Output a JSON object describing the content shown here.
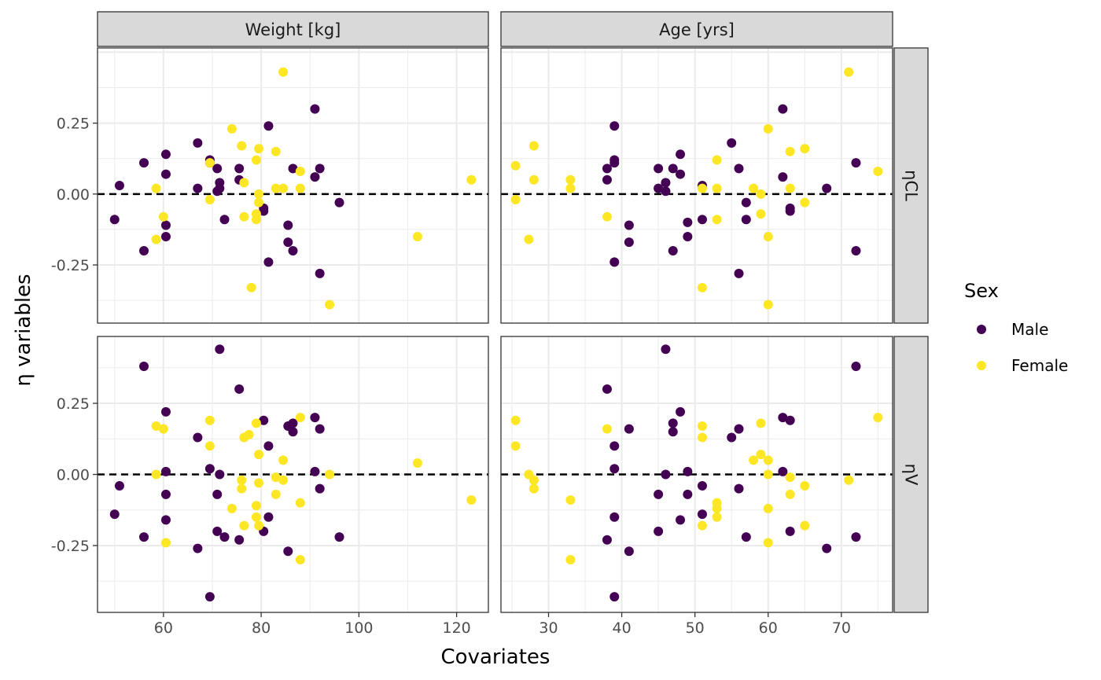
{
  "chart_data": {
    "type": "scatter",
    "layout": "facet_grid",
    "title": "",
    "xlabel": "Covariates",
    "ylabel": "η variables",
    "columns": [
      {
        "label": "Weight [kg]",
        "xlim": [
          46.5,
          126.5
        ],
        "ticks": [
          60,
          80,
          100,
          120
        ],
        "tick_labels": [
          "60",
          "80",
          "100",
          "120"
        ]
      },
      {
        "label": "Age [yrs]",
        "xlim": [
          23.5,
          77.0
        ],
        "ticks": [
          30,
          40,
          50,
          60,
          70
        ],
        "tick_labels": [
          "30",
          "40",
          "50",
          "60",
          "70"
        ]
      }
    ],
    "rows": [
      {
        "label": "ηCL",
        "ylim": [
          -0.455,
          0.515
        ]
      },
      {
        "label": "ηV",
        "ylim": [
          -0.485,
          0.485
        ]
      }
    ],
    "yticks": [
      -0.25,
      0,
      0.25
    ],
    "ytick_labels": [
      "-0.25",
      "0.00",
      "0.25"
    ],
    "reference_line": {
      "y": 0,
      "style": "dashed"
    },
    "grid": true,
    "legend": {
      "title": "Sex",
      "position": "right",
      "entries": [
        {
          "name": "Male",
          "color": "#440154"
        },
        {
          "name": "Female",
          "color": "#FDE725"
        }
      ]
    },
    "series": [
      {
        "name": "Male",
        "color": "#440154",
        "panels": [
          {
            "row": 0,
            "col": 0,
            "points": [
              [
                50,
                -0.09
              ],
              [
                51,
                0.03
              ],
              [
                56,
                0.11
              ],
              [
                56,
                -0.2
              ],
              [
                60.5,
                0.14
              ],
              [
                60.5,
                0.07
              ],
              [
                60.5,
                -0.11
              ],
              [
                60.5,
                -0.15
              ],
              [
                67,
                0.18
              ],
              [
                67,
                0.02
              ],
              [
                69.5,
                0.12
              ],
              [
                69.5,
                0.11
              ],
              [
                71,
                0.09
              ],
              [
                71,
                0.01
              ],
              [
                71.5,
                0.04
              ],
              [
                71.5,
                0.02
              ],
              [
                72.5,
                -0.09
              ],
              [
                75.5,
                0.09
              ],
              [
                75.5,
                0.05
              ],
              [
                80.5,
                -0.05
              ],
              [
                80.5,
                -0.06
              ],
              [
                81.5,
                0.24
              ],
              [
                81.5,
                -0.24
              ],
              [
                85.5,
                -0.11
              ],
              [
                85.5,
                -0.17
              ],
              [
                86.5,
                0.09
              ],
              [
                86.5,
                -0.2
              ],
              [
                91,
                0.3
              ],
              [
                91,
                0.06
              ],
              [
                92,
                0.09
              ],
              [
                92,
                -0.28
              ],
              [
                96,
                -0.03
              ]
            ]
          },
          {
            "row": 0,
            "col": 1,
            "points": [
              [
                38,
                0.09
              ],
              [
                38,
                0.05
              ],
              [
                39,
                0.24
              ],
              [
                39,
                0.12
              ],
              [
                39,
                0.11
              ],
              [
                39,
                -0.24
              ],
              [
                41,
                -0.11
              ],
              [
                41,
                -0.17
              ],
              [
                45,
                0.09
              ],
              [
                45,
                0.02
              ],
              [
                46,
                0.04
              ],
              [
                46,
                0.01
              ],
              [
                47,
                0.09
              ],
              [
                47,
                -0.2
              ],
              [
                48,
                0.14
              ],
              [
                48,
                0.07
              ],
              [
                49,
                -0.1
              ],
              [
                49,
                -0.15
              ],
              [
                51,
                0.03
              ],
              [
                51,
                -0.09
              ],
              [
                55,
                0.18
              ],
              [
                56,
                0.09
              ],
              [
                56,
                -0.28
              ],
              [
                57,
                -0.03
              ],
              [
                57,
                -0.09
              ],
              [
                62,
                0.3
              ],
              [
                62,
                0.06
              ],
              [
                63,
                -0.05
              ],
              [
                63,
                -0.06
              ],
              [
                68,
                0.02
              ],
              [
                72,
                0.11
              ],
              [
                72,
                -0.2
              ]
            ]
          },
          {
            "row": 1,
            "col": 0,
            "points": [
              [
                50,
                -0.14
              ],
              [
                51,
                -0.04
              ],
              [
                56,
                0.38
              ],
              [
                56,
                -0.22
              ],
              [
                60.5,
                0.22
              ],
              [
                60.5,
                0.01
              ],
              [
                60.5,
                -0.07
              ],
              [
                60.5,
                -0.16
              ],
              [
                67,
                0.13
              ],
              [
                67,
                -0.26
              ],
              [
                69.5,
                0.02
              ],
              [
                69.5,
                -0.43
              ],
              [
                71,
                -0.2
              ],
              [
                71,
                -0.07
              ],
              [
                71.5,
                0.44
              ],
              [
                71.5,
                0.0
              ],
              [
                72.5,
                -0.22
              ],
              [
                75.5,
                0.3
              ],
              [
                75.5,
                -0.23
              ],
              [
                80.5,
                0.19
              ],
              [
                80.5,
                -0.2
              ],
              [
                81.5,
                0.1
              ],
              [
                81.5,
                -0.15
              ],
              [
                85.5,
                0.17
              ],
              [
                85.5,
                -0.27
              ],
              [
                86.5,
                0.18
              ],
              [
                86.5,
                0.15
              ],
              [
                91,
                0.2
              ],
              [
                91,
                0.01
              ],
              [
                92,
                0.16
              ],
              [
                92,
                -0.05
              ],
              [
                96,
                -0.22
              ]
            ]
          },
          {
            "row": 1,
            "col": 1,
            "points": [
              [
                38,
                0.3
              ],
              [
                38,
                -0.23
              ],
              [
                39,
                0.1
              ],
              [
                39,
                0.02
              ],
              [
                39,
                -0.15
              ],
              [
                39,
                -0.43
              ],
              [
                41,
                0.16
              ],
              [
                41,
                -0.27
              ],
              [
                45,
                -0.07
              ],
              [
                45,
                -0.2
              ],
              [
                46,
                0.44
              ],
              [
                46,
                0.0
              ],
              [
                47,
                0.18
              ],
              [
                47,
                0.15
              ],
              [
                48,
                0.22
              ],
              [
                48,
                -0.16
              ],
              [
                49,
                0.01
              ],
              [
                49,
                -0.07
              ],
              [
                51,
                -0.04
              ],
              [
                51,
                -0.14
              ],
              [
                55,
                0.13
              ],
              [
                56,
                0.16
              ],
              [
                56,
                -0.05
              ],
              [
                57,
                -0.22
              ],
              [
                62,
                0.2
              ],
              [
                62,
                0.01
              ],
              [
                63,
                0.19
              ],
              [
                63,
                -0.2
              ],
              [
                68,
                -0.26
              ],
              [
                72,
                0.38
              ],
              [
                72,
                -0.22
              ]
            ]
          }
        ]
      },
      {
        "name": "Female",
        "color": "#FDE725",
        "panels": [
          {
            "row": 0,
            "col": 0,
            "points": [
              [
                58.5,
                0.02
              ],
              [
                58.5,
                -0.16
              ],
              [
                60,
                -0.08
              ],
              [
                69.5,
                0.11
              ],
              [
                69.5,
                -0.02
              ],
              [
                74,
                0.23
              ],
              [
                76,
                0.17
              ],
              [
                76.5,
                0.04
              ],
              [
                76.5,
                -0.08
              ],
              [
                78,
                -0.33
              ],
              [
                79,
                0.12
              ],
              [
                79,
                -0.07
              ],
              [
                79,
                -0.09
              ],
              [
                79.5,
                0.16
              ],
              [
                79.5,
                0.0
              ],
              [
                79.5,
                -0.03
              ],
              [
                83,
                0.15
              ],
              [
                83,
                0.02
              ],
              [
                84.5,
                0.43
              ],
              [
                84.5,
                0.02
              ],
              [
                88,
                0.08
              ],
              [
                88,
                0.02
              ],
              [
                94,
                -0.39
              ],
              [
                112,
                -0.15
              ],
              [
                123,
                0.05
              ]
            ]
          },
          {
            "row": 0,
            "col": 1,
            "points": [
              [
                25.5,
                0.1
              ],
              [
                25.5,
                -0.02
              ],
              [
                27.3,
                -0.16
              ],
              [
                28,
                0.17
              ],
              [
                28,
                0.05
              ],
              [
                33,
                0.05
              ],
              [
                33,
                0.02
              ],
              [
                38,
                -0.08
              ],
              [
                51,
                0.02
              ],
              [
                51,
                -0.33
              ],
              [
                53,
                0.12
              ],
              [
                53,
                0.02
              ],
              [
                53,
                -0.09
              ],
              [
                58,
                0.02
              ],
              [
                59,
                0.0
              ],
              [
                59,
                -0.07
              ],
              [
                60,
                0.23
              ],
              [
                60,
                -0.15
              ],
              [
                60,
                -0.39
              ],
              [
                63,
                0.15
              ],
              [
                63,
                0.02
              ],
              [
                65,
                0.16
              ],
              [
                65,
                -0.03
              ],
              [
                71,
                0.43
              ],
              [
                75,
                0.08
              ]
            ]
          },
          {
            "row": 1,
            "col": 0,
            "points": [
              [
                58.5,
                0.17
              ],
              [
                58.5,
                0.0
              ],
              [
                60,
                0.16
              ],
              [
                60.5,
                -0.24
              ],
              [
                69.5,
                0.19
              ],
              [
                69.5,
                0.1
              ],
              [
                74,
                -0.12
              ],
              [
                76,
                -0.02
              ],
              [
                76,
                -0.05
              ],
              [
                76.5,
                0.13
              ],
              [
                76.5,
                -0.18
              ],
              [
                77.5,
                0.14
              ],
              [
                79,
                0.18
              ],
              [
                79,
                -0.11
              ],
              [
                79,
                -0.15
              ],
              [
                79.5,
                0.07
              ],
              [
                79.5,
                -0.03
              ],
              [
                79.5,
                -0.18
              ],
              [
                83,
                -0.01
              ],
              [
                83,
                -0.07
              ],
              [
                84.5,
                0.05
              ],
              [
                84.5,
                -0.02
              ],
              [
                88,
                0.2
              ],
              [
                88,
                -0.1
              ],
              [
                88,
                -0.3
              ],
              [
                94,
                0.0
              ],
              [
                112,
                0.04
              ],
              [
                123,
                -0.09
              ]
            ]
          },
          {
            "row": 1,
            "col": 1,
            "points": [
              [
                25.5,
                0.19
              ],
              [
                25.5,
                0.1
              ],
              [
                27.3,
                0.0
              ],
              [
                28,
                -0.02
              ],
              [
                28,
                -0.05
              ],
              [
                33,
                -0.09
              ],
              [
                33,
                -0.3
              ],
              [
                38,
                0.16
              ],
              [
                51,
                0.17
              ],
              [
                51,
                0.13
              ],
              [
                51,
                -0.18
              ],
              [
                53,
                -0.1
              ],
              [
                53,
                -0.12
              ],
              [
                53,
                -0.15
              ],
              [
                58,
                0.05
              ],
              [
                59,
                0.18
              ],
              [
                59,
                0.07
              ],
              [
                60,
                0.05
              ],
              [
                60,
                0.0
              ],
              [
                60,
                -0.12
              ],
              [
                60,
                -0.24
              ],
              [
                63,
                -0.01
              ],
              [
                63,
                -0.07
              ],
              [
                65,
                -0.04
              ],
              [
                65,
                -0.18
              ],
              [
                71,
                -0.02
              ],
              [
                75,
                0.2
              ]
            ]
          }
        ]
      }
    ]
  }
}
